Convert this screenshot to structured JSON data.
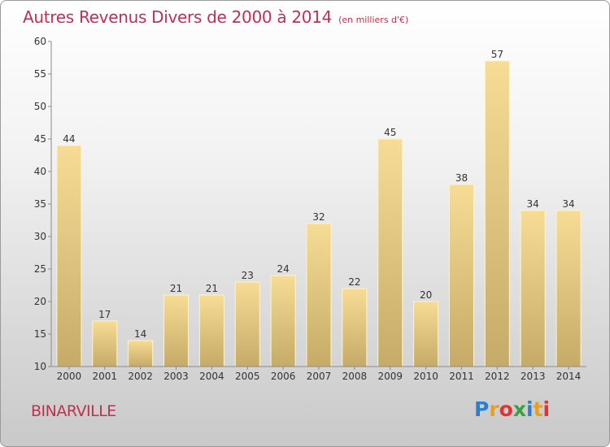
{
  "chart_data": {
    "type": "bar",
    "title": "Autres Revenus Divers de 2000 à 2014",
    "subtitle": "(en milliers d'€)",
    "categories": [
      "2000",
      "2001",
      "2002",
      "2003",
      "2004",
      "2005",
      "2006",
      "2007",
      "2008",
      "2009",
      "2010",
      "2011",
      "2012",
      "2013",
      "2014"
    ],
    "values": [
      44,
      17,
      14,
      21,
      21,
      23,
      24,
      32,
      22,
      45,
      20,
      38,
      57,
      34,
      34
    ],
    "ylim": [
      10,
      60
    ],
    "yticks": [
      10,
      15,
      20,
      25,
      30,
      35,
      40,
      45,
      50,
      55,
      60
    ],
    "grid": false,
    "bar_color": "#e8c878"
  },
  "footer": {
    "commune": "BINARVILLE",
    "logo_letters": [
      "P",
      "r",
      "o",
      "x",
      "i",
      "t",
      "i"
    ],
    "logo_colors": [
      "#2a7fd4",
      "#e8a020",
      "#e83030",
      "#3aa040",
      "#2a7fd4",
      "#e8a020",
      "#e83030"
    ]
  }
}
